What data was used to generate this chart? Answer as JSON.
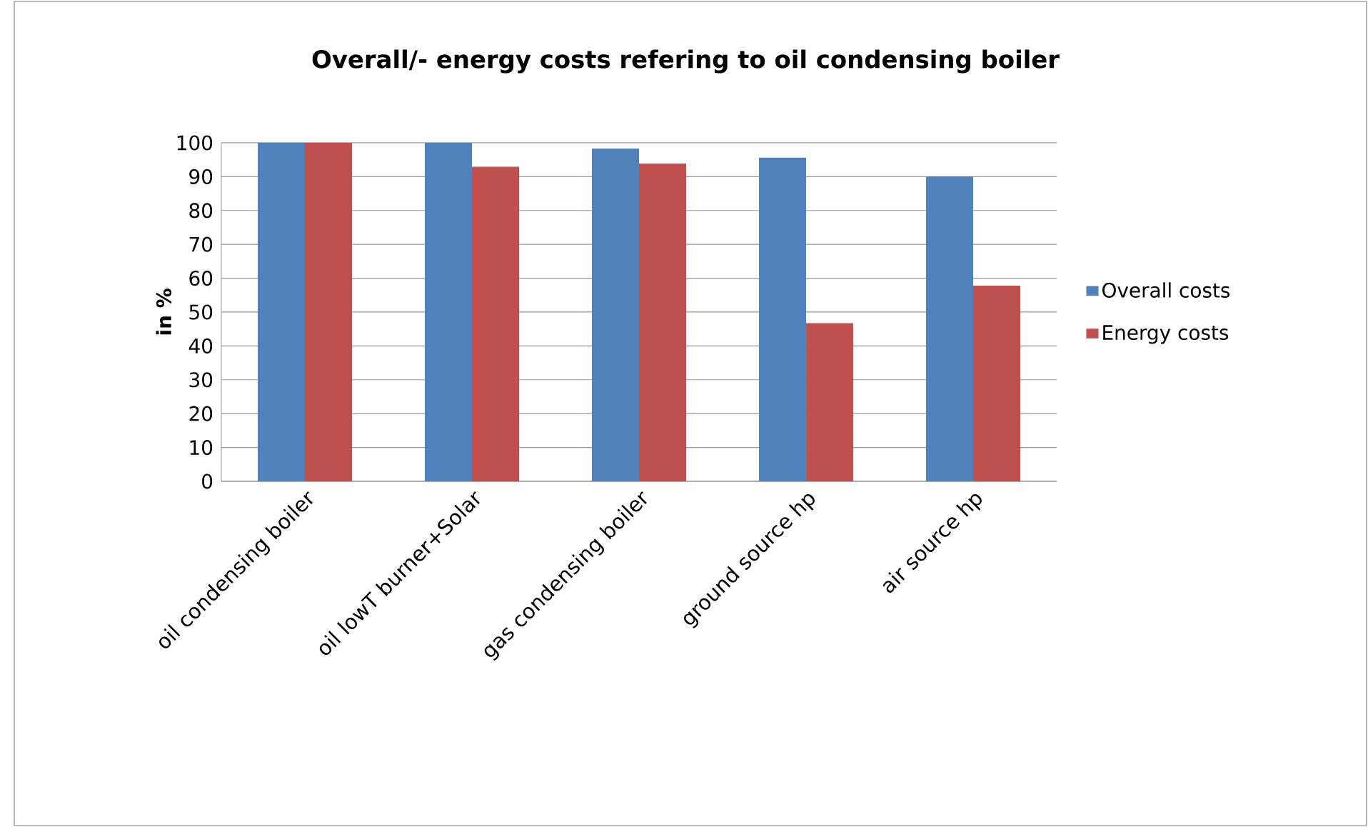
{
  "chart_data": {
    "type": "bar",
    "title": "Overall/- energy costs refering to oil condensing boiler",
    "ylabel": "in %",
    "categories": [
      "oil condensing boiler",
      "oil lowT burner+Solar",
      "gas condensing boiler",
      "ground source hp",
      "air source hp"
    ],
    "series": [
      {
        "name": "Overall costs",
        "color": "#4f81bd",
        "values": [
          100,
          100,
          98.3,
          95.6,
          90.1
        ]
      },
      {
        "name": "Energy costs",
        "color": "#c0504d",
        "values": [
          100,
          92.9,
          93.9,
          46.7,
          57.8
        ]
      }
    ],
    "ylim": [
      0,
      100
    ],
    "yticks": [
      0,
      10,
      20,
      30,
      40,
      50,
      60,
      70,
      80,
      90,
      100
    ],
    "grid": "y",
    "legend": "right"
  }
}
